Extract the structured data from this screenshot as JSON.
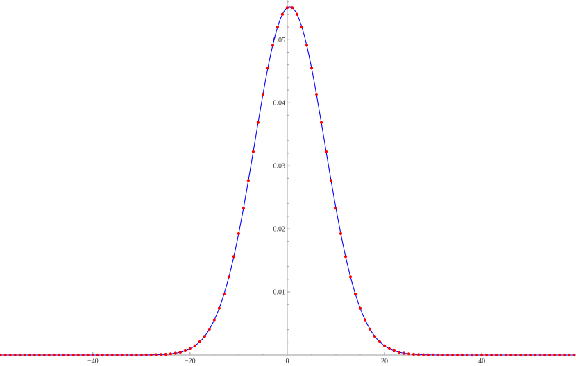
{
  "chart_data": {
    "type": "scatter",
    "title": "",
    "xlabel": "",
    "ylabel": "",
    "xlim": [
      -59.1,
      59.4
    ],
    "ylim": [
      0,
      0.0563
    ],
    "grid": false,
    "x_ticks": [
      -40,
      -20,
      0,
      20,
      40
    ],
    "x_tick_labels": [
      "−40",
      "−20",
      "0",
      "20",
      "40"
    ],
    "y_ticks": [
      0.01,
      0.02,
      0.03,
      0.04,
      0.05
    ],
    "y_tick_labels": [
      "0.01",
      "0.02",
      "0.03",
      "0.04",
      "0.05"
    ],
    "series": [
      {
        "style": "points",
        "color": "#ff0000",
        "x_start": -59,
        "x_step": 1,
        "values": [
          0,
          0,
          0,
          0,
          0,
          0,
          0,
          0,
          0,
          0,
          0,
          0,
          0,
          0,
          0,
          0,
          0,
          0,
          0,
          0,
          0,
          0,
          0,
          0,
          0,
          0,
          0,
          0,
          0,
          0,
          1e-05,
          2e-05,
          4e-05,
          7e-05,
          0.00011,
          0.00018,
          0.00028,
          0.00044,
          0.00066,
          0.00099,
          0.00146,
          0.00209,
          0.00295,
          0.00409,
          0.00555,
          0.0074,
          0.00967,
          0.01239,
          0.01559,
          0.01924,
          0.02329,
          0.02767,
          0.03224,
          0.03686,
          0.04134,
          0.04549,
          0.0491,
          0.052,
          0.05402,
          0.05507,
          0.05507,
          0.05402,
          0.052,
          0.0491,
          0.04549,
          0.04134,
          0.03686,
          0.03224,
          0.02767,
          0.02329,
          0.01924,
          0.01559,
          0.01239,
          0.00967,
          0.0074,
          0.00555,
          0.00409,
          0.00295,
          0.00209,
          0.00146,
          0.00099,
          0.00066,
          0.00044,
          0.00028,
          0.00018,
          0.00011,
          7e-05,
          4e-05,
          2e-05,
          1e-05,
          0,
          0,
          0,
          0,
          0,
          0,
          0,
          0,
          0,
          0,
          0,
          0,
          0,
          0,
          0,
          0,
          0,
          0,
          0,
          0,
          0,
          0,
          0,
          0,
          0,
          0,
          0,
          0,
          0
        ]
      },
      {
        "style": "line",
        "color": "#0000ff"
      }
    ],
    "axis_color": "#999999"
  }
}
